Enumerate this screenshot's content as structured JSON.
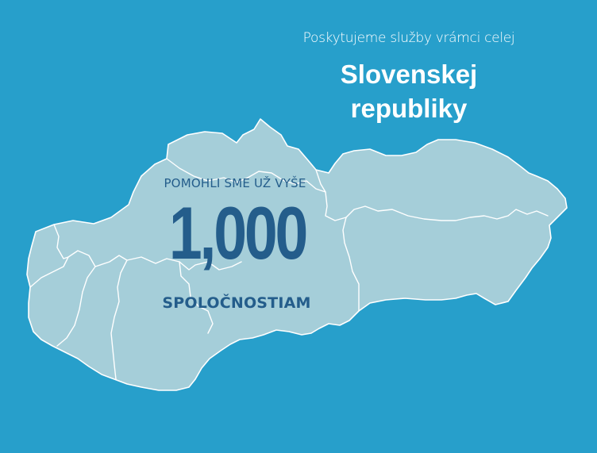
{
  "header": {
    "subtitle": "Poskytujeme služby vrámci celej",
    "title_line1": "Slovenskej",
    "title_line2": "republiky"
  },
  "stat": {
    "prefix": "POMOHLI SME UŽ VYŠE",
    "value": "1,000",
    "suffix": "SPOLOČNOSTIAM"
  },
  "colors": {
    "background": "#279fcb",
    "map_fill": "#a5ced9",
    "border": "#ffffff",
    "stat_text": "#245d8b"
  }
}
